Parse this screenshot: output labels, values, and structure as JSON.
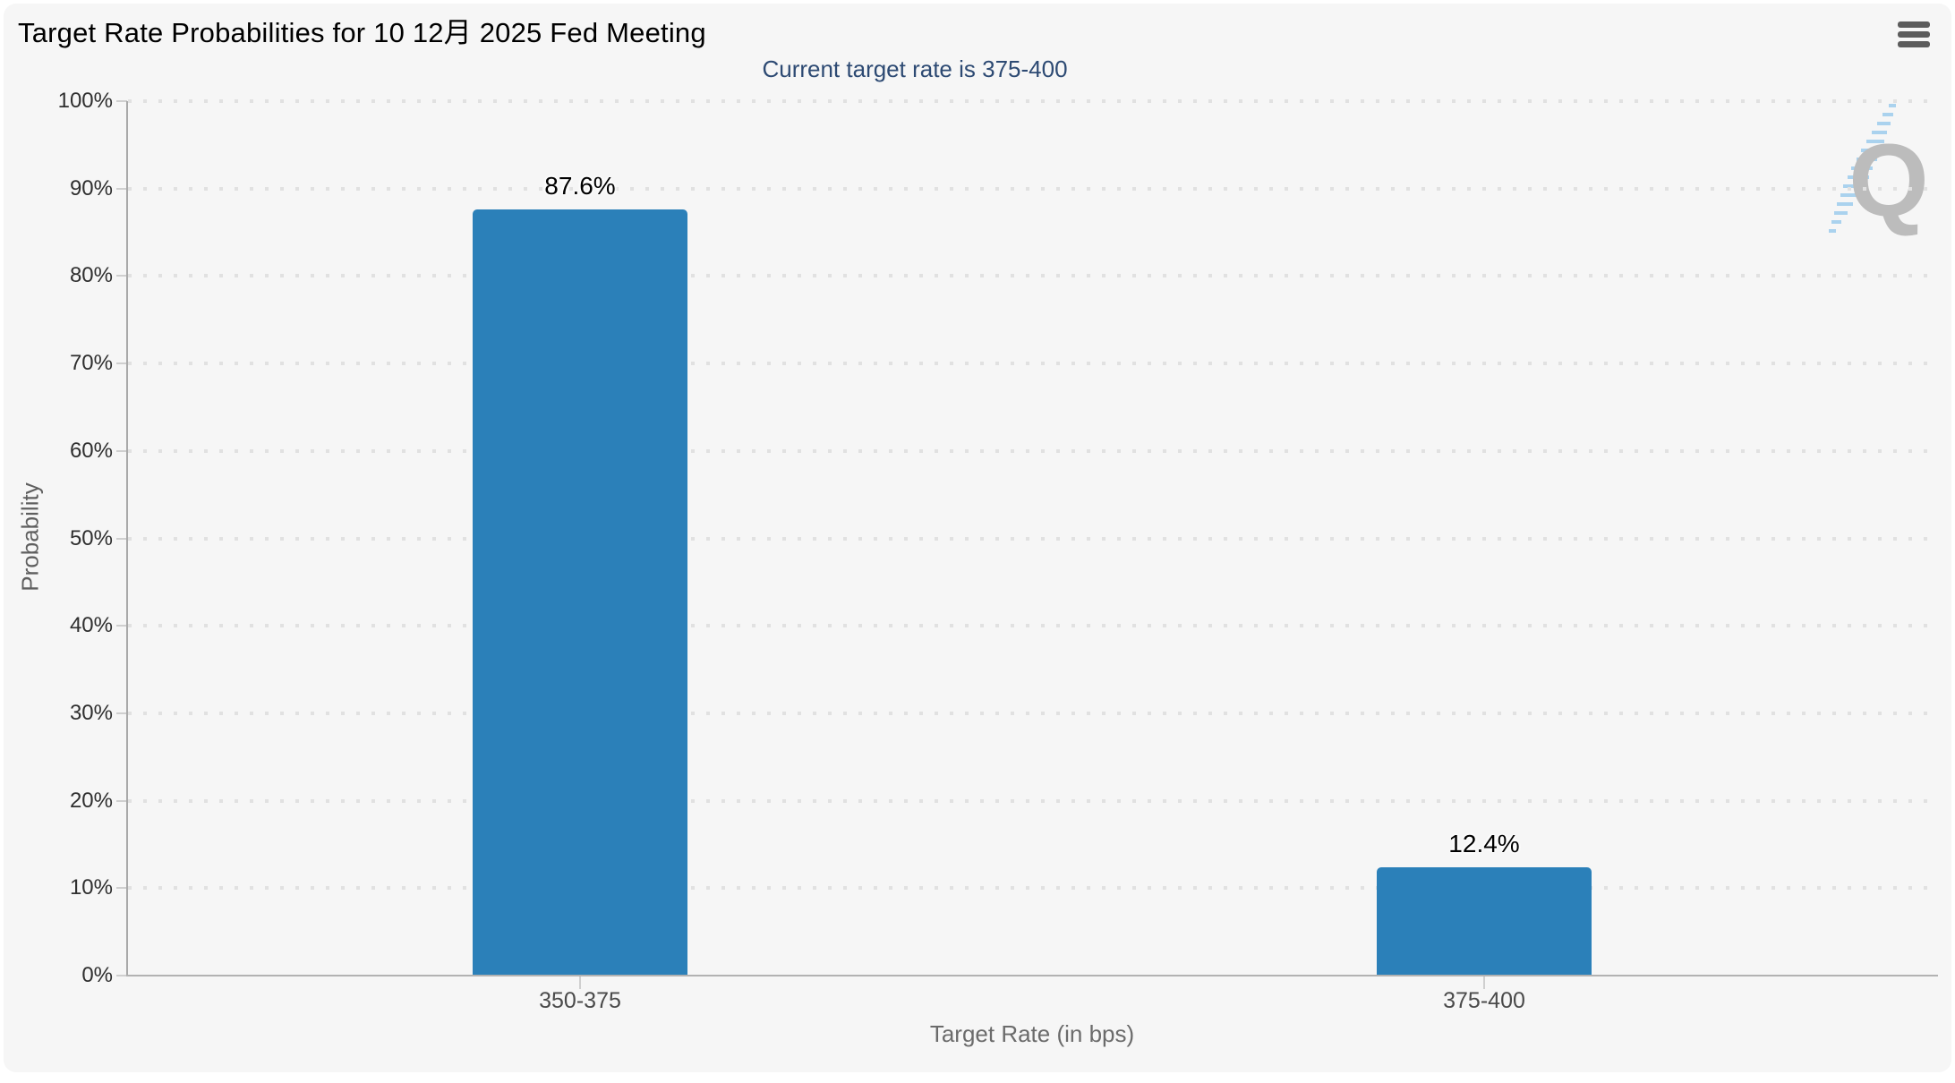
{
  "header": {
    "title": "Target Rate Probabilities for 10 12月 2025 Fed Meeting",
    "menu_icon": "hamburger-menu"
  },
  "chart_data": {
    "type": "bar",
    "title": "Target Rate Probabilities for 10 12月 2025 Fed Meeting",
    "subtitle": "Current target rate is 375-400",
    "categories": [
      "350-375",
      "375-400"
    ],
    "values": [
      87.6,
      12.4
    ],
    "value_labels": [
      "87.6%",
      "12.4%"
    ],
    "xlabel": "Target Rate (in bps)",
    "ylabel": "Probability",
    "ylim": [
      0,
      100
    ],
    "ytick_step": 10,
    "ytick_labels": [
      "0%",
      "10%",
      "20%",
      "30%",
      "40%",
      "50%",
      "60%",
      "70%",
      "80%",
      "90%",
      "100%"
    ],
    "grid": "dotted-horizontal",
    "legend": "none",
    "bar_color": "#2b80b9",
    "subtitle_color": "#2d4a73",
    "watermark_text": "Q"
  }
}
